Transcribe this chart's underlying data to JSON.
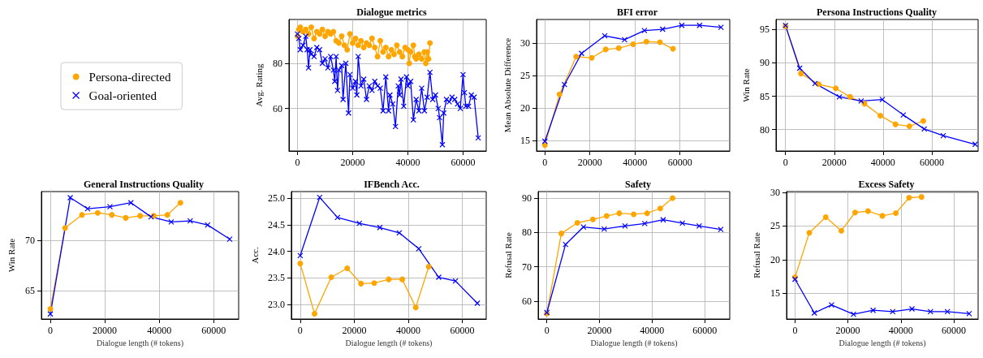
{
  "chart_data": [
    {
      "type": "line",
      "title": "Dialogue metrics",
      "ylabel": "Avg. Rating",
      "xlim": [
        -3100,
        68400
      ],
      "ylim": [
        41.2,
        99.4
      ],
      "xticks": [
        0,
        20000,
        40000,
        60000
      ],
      "yticks": [
        60,
        80
      ],
      "grid": true,
      "legend": "left",
      "line_style": "solid",
      "series": [
        {
          "name": "Persona-directed",
          "color": "#ffa500",
          "marker": "circle",
          "x": [
            0,
            500,
            1000,
            2000,
            3000,
            4000,
            5000,
            6000,
            7000,
            8000,
            9000,
            10000,
            11000,
            12000,
            13000,
            14000,
            15000,
            16000,
            17000,
            18000,
            19000,
            20000,
            21000,
            22000,
            23000,
            24000,
            25000,
            26000,
            27000,
            28000,
            29000,
            30000,
            31000,
            32000,
            33000,
            34000,
            35000,
            36000,
            37000,
            38000,
            39000,
            40000,
            40500,
            41000,
            42000,
            42500,
            43000,
            44000,
            45000,
            46000,
            46500,
            47000,
            47500,
            48000
          ],
          "values": [
            92,
            95,
            96,
            94,
            95,
            93,
            96,
            91,
            94,
            93,
            95,
            92,
            94,
            93,
            94,
            90,
            89,
            92,
            88,
            86,
            93,
            89,
            91,
            88,
            90,
            87,
            89,
            88,
            91,
            87,
            83,
            90,
            85,
            87,
            83,
            86,
            84,
            88,
            85,
            83,
            87,
            86,
            80,
            85,
            88,
            83,
            82,
            84,
            82,
            85,
            80,
            85,
            82,
            89
          ]
        },
        {
          "name": "Goal-oriented",
          "color": "#0000ff",
          "marker": "cross",
          "x": [
            0,
            500,
            1000,
            2000,
            3000,
            3500,
            4000,
            4500,
            5000,
            6000,
            7000,
            8000,
            9000,
            10000,
            11000,
            12000,
            13000,
            13500,
            14000,
            14500,
            15000,
            16000,
            16500,
            17500,
            18500,
            19000,
            20000,
            21000,
            21500,
            22000,
            23000,
            24000,
            25000,
            26000,
            27000,
            28000,
            29000,
            30000,
            31000,
            32000,
            33000,
            33500,
            34500,
            35500,
            36500,
            37000,
            37500,
            38500,
            39500,
            40000,
            41000,
            42000,
            43000,
            44000,
            45000,
            46000,
            47000,
            48000,
            49000,
            50000,
            51000,
            51500,
            52500,
            53000,
            54000,
            55000,
            56000,
            57000,
            58000,
            59000,
            60000,
            60500,
            61000,
            62000,
            63000,
            64000,
            65500
          ],
          "values": [
            93,
            91,
            86,
            88,
            92,
            86,
            78,
            86,
            84,
            83,
            87,
            86,
            80,
            82,
            78,
            83,
            77,
            72,
            83,
            68,
            77,
            79,
            64,
            80,
            58,
            75,
            69,
            72,
            66,
            83,
            70,
            73,
            64,
            70,
            68,
            72,
            70,
            69,
            59,
            74,
            59,
            66,
            62,
            52,
            70,
            66,
            73,
            61,
            74,
            70,
            72,
            55,
            64,
            59,
            69,
            59,
            65,
            76,
            64,
            66,
            60,
            56,
            44,
            58,
            64,
            63,
            65,
            64,
            62,
            60,
            75,
            67,
            61,
            61,
            66,
            65,
            47
          ]
        }
      ]
    },
    {
      "type": "line",
      "title": "BFI error",
      "ylabel": "Mean Absolute Difference",
      "xlim": [
        -3700,
        82100
      ],
      "ylim": [
        13.4,
        33.6
      ],
      "xticks": [
        0,
        20000,
        40000,
        60000
      ],
      "yticks": [
        15,
        20,
        25,
        30
      ],
      "grid": true,
      "line_style": "solid",
      "series": [
        {
          "color": "#ffa500",
          "marker": "circle",
          "x": [
            0,
            6500,
            13900,
            20800,
            27000,
            32800,
            39200,
            45100,
            51100,
            56900
          ],
          "values": [
            14.3,
            22.1,
            27.9,
            27.7,
            29.0,
            29.2,
            29.8,
            30.2,
            30.1,
            29.1
          ]
        },
        {
          "color": "#0000ff",
          "marker": "cross",
          "x": [
            0,
            8700,
            16300,
            26600,
            35400,
            44200,
            52300,
            60800,
            68700,
            78200
          ],
          "values": [
            14.9,
            23.6,
            28.4,
            31.1,
            30.5,
            31.9,
            32.1,
            32.7,
            32.7,
            32.4
          ]
        }
      ]
    },
    {
      "type": "line",
      "title": "Persona Instructions Quality",
      "ylabel": "Win Rate",
      "xlim": [
        -3900,
        79000
      ],
      "ylim": [
        76.8,
        96.5
      ],
      "xticks": [
        0,
        20000,
        40000,
        60000
      ],
      "yticks": [
        80,
        85,
        90,
        95
      ],
      "grid": true,
      "line_style": "solid",
      "series": [
        {
          "color": "#ffa500",
          "marker": "circle",
          "x": [
            0,
            6300,
            13600,
            20600,
            26500,
            32400,
            38900,
            45100,
            50800,
            56500
          ],
          "values": [
            95.5,
            88.4,
            86.8,
            86.2,
            84.9,
            83.9,
            82.1,
            80.8,
            80.5,
            81.3
          ]
        },
        {
          "color": "#0000ff",
          "marker": "cross",
          "x": [
            0,
            5800,
            12100,
            22100,
            31000,
            39700,
            48300,
            56900,
            64700,
            77800
          ],
          "values": [
            95.6,
            89.2,
            86.9,
            84.9,
            84.3,
            84.5,
            82.2,
            80.1,
            79.1,
            77.8
          ]
        }
      ]
    },
    {
      "type": "line",
      "title": "General Instructions Quality",
      "xlabel": "Dialogue length (# tokens)",
      "ylabel": "Win Rate",
      "xlim": [
        -3300,
        69200
      ],
      "ylim": [
        62.2,
        74.8
      ],
      "xticks": [
        0,
        20000,
        40000,
        60000
      ],
      "yticks": [
        65,
        70
      ],
      "grid": true,
      "line_style": "solid",
      "series": [
        {
          "color": "#ffa500",
          "marker": "circle",
          "x": [
            0,
            5400,
            11600,
            17400,
            22600,
            27700,
            33000,
            38000,
            43000,
            47800
          ],
          "values": [
            63.2,
            71.2,
            72.5,
            72.7,
            72.5,
            72.2,
            72.4,
            72.4,
            72.5,
            73.7
          ]
        },
        {
          "color": "#0000ff",
          "marker": "cross",
          "x": [
            0,
            7300,
            13700,
            21900,
            29600,
            37000,
            44400,
            51400,
            57800,
            65900
          ],
          "values": [
            62.7,
            74.2,
            73.1,
            73.3,
            73.7,
            72.3,
            71.8,
            71.9,
            71.5,
            70.1
          ]
        }
      ]
    },
    {
      "type": "line",
      "title": "IFBench Acc.",
      "xlabel": "Dialogue length (# tokens)",
      "ylabel": "Acc.",
      "xlim": [
        -3300,
        68900
      ],
      "ylim": [
        22.72,
        25.13
      ],
      "xticks": [
        0,
        20000,
        40000,
        60000
      ],
      "yticks": [
        {
          "value": 23,
          "label": "23.0"
        },
        23.5,
        {
          "value": 24,
          "label": "24.0"
        },
        24.5,
        {
          "value": 25,
          "label": "25.0"
        }
      ],
      "grid": true,
      "line_style": "solid",
      "series": [
        {
          "color": "#ffa500",
          "marker": "circle",
          "x": [
            0,
            5300,
            11500,
            17400,
            22500,
            27400,
            32800,
            37800,
            42800,
            47600
          ],
          "values": [
            23.77,
            22.82,
            23.51,
            23.68,
            23.39,
            23.4,
            23.47,
            23.47,
            22.94,
            23.71
          ]
        },
        {
          "color": "#0000ff",
          "marker": "cross",
          "x": [
            0,
            7200,
            13800,
            21900,
            29500,
            36700,
            43900,
            51300,
            57500,
            65600
          ],
          "values": [
            23.92,
            25.02,
            24.64,
            24.53,
            24.45,
            24.35,
            24.05,
            23.51,
            23.44,
            23.02
          ]
        }
      ]
    },
    {
      "type": "line",
      "title": "Safety",
      "xlabel": "Dialogue length (# tokens)",
      "ylabel": "Refusal Rate",
      "xlim": [
        -3300,
        69500
      ],
      "ylim": [
        54.8,
        91.9
      ],
      "xticks": [
        0,
        20000,
        40000,
        60000
      ],
      "yticks": [
        60,
        70,
        80,
        90
      ],
      "grid": true,
      "line_style": "solid",
      "series": [
        {
          "color": "#ffa500",
          "marker": "circle",
          "x": [
            0,
            5500,
            11600,
            17500,
            22700,
            27500,
            33000,
            38100,
            43100,
            47800
          ],
          "values": [
            56.4,
            79.7,
            82.8,
            83.8,
            84.8,
            85.6,
            85.3,
            85.6,
            87.0,
            90.0
          ]
        },
        {
          "color": "#0000ff",
          "marker": "cross",
          "x": [
            0,
            7100,
            13900,
            21800,
            29700,
            37200,
            44200,
            51500,
            57900,
            66100
          ],
          "values": [
            56.7,
            76.5,
            81.6,
            81.0,
            81.9,
            82.6,
            83.7,
            82.7,
            81.9,
            80.9
          ]
        }
      ]
    },
    {
      "type": "line",
      "title": "Excess Safety",
      "xlabel": "Dialogue length (# tokens)",
      "ylabel": "Refusal Rate",
      "xlim": [
        -3200,
        69200
      ],
      "ylim": [
        11.2,
        30.1
      ],
      "xticks": [
        0,
        20000,
        40000,
        60000
      ],
      "yticks": [
        15,
        20,
        25,
        30
      ],
      "grid": true,
      "line_style": "solid",
      "series": [
        {
          "color": "#ffa500",
          "marker": "circle",
          "x": [
            0,
            5400,
            11600,
            17500,
            22700,
            27600,
            33000,
            38100,
            43100,
            47800
          ],
          "values": [
            17.4,
            24.0,
            26.3,
            24.3,
            27.0,
            27.2,
            26.5,
            26.9,
            29.2,
            29.3
          ]
        },
        {
          "color": "#0000ff",
          "marker": "cross",
          "x": [
            0,
            7300,
            13800,
            22100,
            29500,
            36900,
            44200,
            51200,
            57600,
            65800
          ],
          "values": [
            17.1,
            12.1,
            13.3,
            11.9,
            12.5,
            12.3,
            12.7,
            12.3,
            12.3,
            12.0
          ]
        }
      ]
    }
  ]
}
